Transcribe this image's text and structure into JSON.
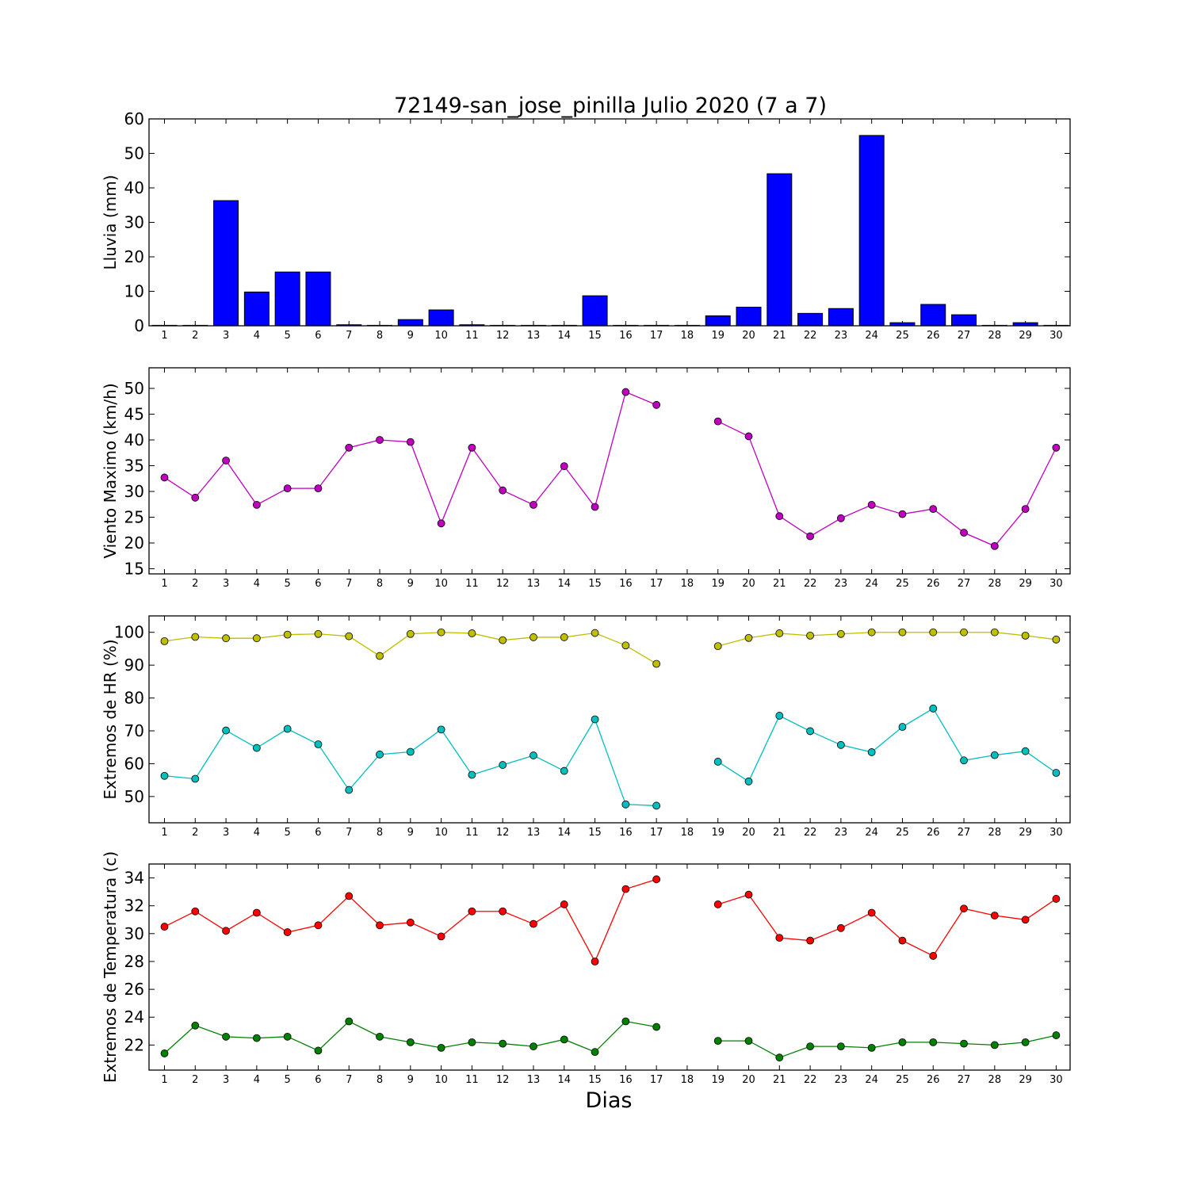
{
  "figure": {
    "title": "72149-san_jose_pinilla Julio 2020  (7 a 7)",
    "xlabel": "Dias"
  },
  "chart_data": [
    {
      "type": "bar",
      "ylabel": "Lluvia (mm)",
      "ylim": [
        0,
        60
      ],
      "yticks": [
        0,
        10,
        20,
        30,
        40,
        50,
        60
      ],
      "categories": [
        "1",
        "2",
        "3",
        "4",
        "5",
        "6",
        "7",
        "8",
        "9",
        "10",
        "11",
        "12",
        "13",
        "14",
        "15",
        "16",
        "17",
        "18",
        "19",
        "20",
        "21",
        "22",
        "23",
        "24",
        "25",
        "26",
        "27",
        "28",
        "29",
        "30"
      ],
      "values": [
        0,
        0,
        36.3,
        9.8,
        15.6,
        15.6,
        0.3,
        0,
        1.8,
        4.6,
        0.3,
        0,
        0,
        0,
        8.7,
        0,
        0,
        0,
        2.9,
        5.4,
        44.1,
        3.6,
        5.0,
        55.2,
        0.9,
        6.2,
        3.2,
        0,
        0.9,
        0
      ],
      "color": "#0000ff"
    },
    {
      "type": "line",
      "ylabel": "Viento Maximo (km/h)",
      "ylim": [
        14,
        54
      ],
      "yticks": [
        15,
        20,
        25,
        30,
        35,
        40,
        45,
        50
      ],
      "categories": [
        "1",
        "2",
        "3",
        "4",
        "5",
        "6",
        "7",
        "8",
        "9",
        "10",
        "11",
        "12",
        "13",
        "14",
        "15",
        "16",
        "17",
        "18",
        "19",
        "20",
        "21",
        "22",
        "23",
        "24",
        "25",
        "26",
        "27",
        "28",
        "29",
        "30"
      ],
      "series": [
        {
          "color": "#bf00bf",
          "values": [
            32.7,
            28.8,
            36.0,
            27.4,
            30.6,
            30.6,
            38.5,
            40.0,
            39.6,
            23.8,
            38.5,
            30.2,
            27.4,
            34.9,
            27.0,
            49.3,
            46.8,
            null,
            43.6,
            40.7,
            25.2,
            21.3,
            24.8,
            27.4,
            25.6,
            26.6,
            22.0,
            19.4,
            26.6,
            38.5
          ]
        }
      ]
    },
    {
      "type": "line",
      "ylabel": "Extremos de HR (%)",
      "ylim": [
        42,
        105
      ],
      "yticks": [
        50,
        60,
        70,
        80,
        90,
        100
      ],
      "categories": [
        "1",
        "2",
        "3",
        "4",
        "5",
        "6",
        "7",
        "8",
        "9",
        "10",
        "11",
        "12",
        "13",
        "14",
        "15",
        "16",
        "17",
        "18",
        "19",
        "20",
        "21",
        "22",
        "23",
        "24",
        "25",
        "26",
        "27",
        "28",
        "29",
        "30"
      ],
      "series": [
        {
          "color": "#bfbf00",
          "values": [
            97.3,
            98.6,
            98.2,
            98.2,
            99.3,
            99.5,
            98.8,
            92.8,
            99.5,
            100,
            99.7,
            97.6,
            98.5,
            98.5,
            99.8,
            96.0,
            90.4,
            null,
            95.8,
            98.3,
            99.7,
            99.0,
            99.5,
            100,
            100,
            100,
            100,
            100,
            99.0,
            97.8
          ]
        },
        {
          "color": "#00bfbf",
          "values": [
            56.3,
            55.4,
            70.1,
            64.8,
            70.6,
            65.9,
            52.0,
            62.8,
            63.6,
            70.4,
            56.6,
            59.6,
            62.5,
            57.8,
            73.5,
            47.6,
            47.2,
            null,
            60.6,
            54.6,
            74.6,
            69.9,
            65.7,
            63.5,
            71.2,
            76.8,
            61.0,
            62.6,
            63.8,
            57.2
          ]
        }
      ]
    },
    {
      "type": "line",
      "ylabel": "Extremos de Temperatura (c)",
      "ylim": [
        20.2,
        35
      ],
      "yticks": [
        22,
        24,
        26,
        28,
        30,
        32,
        34
      ],
      "categories": [
        "1",
        "2",
        "3",
        "4",
        "5",
        "6",
        "7",
        "8",
        "9",
        "10",
        "11",
        "12",
        "13",
        "14",
        "15",
        "16",
        "17",
        "18",
        "19",
        "20",
        "21",
        "22",
        "23",
        "24",
        "25",
        "26",
        "27",
        "28",
        "29",
        "30"
      ],
      "series": [
        {
          "color": "#ff0000",
          "values": [
            30.5,
            31.6,
            30.2,
            31.5,
            30.1,
            30.6,
            32.7,
            30.6,
            30.8,
            29.8,
            31.6,
            31.6,
            30.7,
            32.1,
            28.0,
            33.2,
            33.9,
            null,
            32.1,
            32.8,
            29.7,
            29.5,
            30.4,
            31.5,
            29.5,
            28.4,
            31.8,
            31.3,
            31.0,
            32.5
          ]
        },
        {
          "color": "#008000",
          "values": [
            21.4,
            23.4,
            22.6,
            22.5,
            22.6,
            21.6,
            23.7,
            22.6,
            22.2,
            21.8,
            22.2,
            22.1,
            21.9,
            22.4,
            21.5,
            23.7,
            23.3,
            null,
            22.3,
            22.3,
            21.1,
            21.9,
            21.9,
            21.8,
            22.2,
            22.2,
            22.1,
            22.0,
            22.2,
            22.7
          ]
        }
      ]
    }
  ]
}
